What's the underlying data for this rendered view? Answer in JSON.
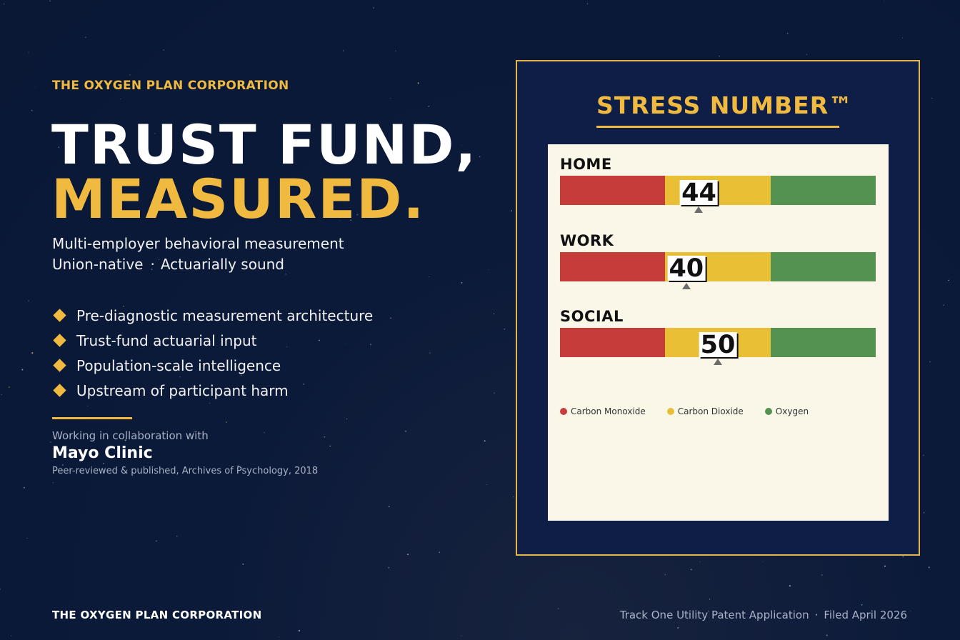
{
  "left": {
    "company": "THE OXYGEN PLAN CORPORATION",
    "headline_line1": "TRUST FUND,",
    "headline_line2": "MEASURED.",
    "subtitle_line1": "Multi-employer behavioral measurement",
    "subtitle_line2_a": "Union-native",
    "subtitle_line2_sep": "·",
    "subtitle_line2_b": "Actuarially sound",
    "bullets": [
      "Pre-diagnostic measurement architecture",
      "Trust-fund actuarial input",
      "Population-scale intelligence",
      "Upstream of participant harm"
    ],
    "collab_label": "Working in collaboration with",
    "collab_name": "Mayo Clinic",
    "collab_note": "Peer-reviewed & published, Archives of Psychology, 2018"
  },
  "footer": {
    "left": "THE OXYGEN PLAN CORPORATION",
    "right_a": "Track One Utility Patent Application",
    "right_sep": "·",
    "right_b": "Filed April 2026"
  },
  "panel": {
    "title": "STRESS NUMBER™",
    "scale_min": 0,
    "scale_max": 100,
    "gauges": [
      {
        "label": "HOME",
        "value": 44,
        "display": "44"
      },
      {
        "label": "WORK",
        "value": 40,
        "display": "40"
      },
      {
        "label": "SOCIAL",
        "value": 50,
        "display": "50"
      }
    ],
    "legend": [
      {
        "label": "Carbon Monoxide",
        "color": "#c63c3a"
      },
      {
        "label": "Carbon Dioxide",
        "color": "#e8bf35"
      },
      {
        "label": "Oxygen",
        "color": "#54924f"
      }
    ]
  },
  "colors": {
    "accent": "#f0b93f",
    "background": "#0c1a3a",
    "panel_bg": "#0e1e47",
    "card_bg": "#faf7e9"
  }
}
